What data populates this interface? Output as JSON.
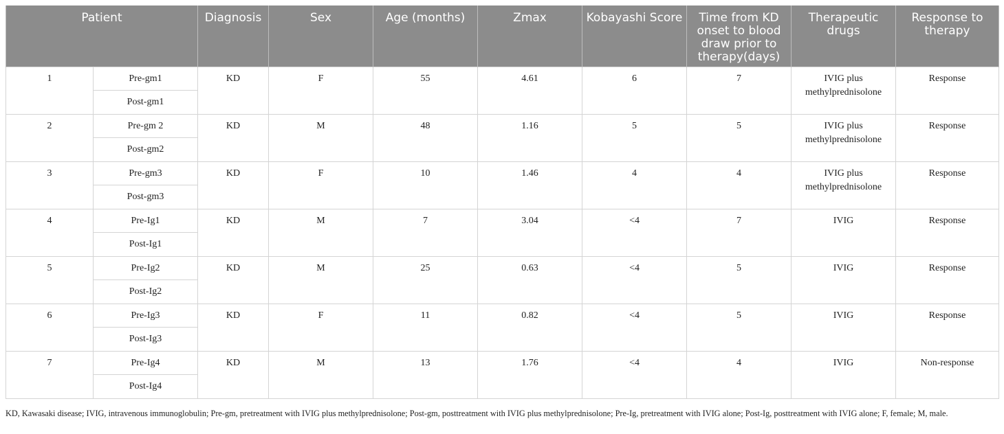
{
  "headers": [
    "Patient",
    "Diagnosis",
    "Sex",
    "Age (months)",
    "Zmax",
    "Kobayashi Score",
    "Time from KD onset to blood draw prior to therapy(days)",
    "Therapeutic drugs",
    "Response to therapy"
  ],
  "rows": [
    {
      "id": "1",
      "pre": "Pre-gm1",
      "post": "Post-gm1",
      "diagnosis": "KD",
      "sex": "F",
      "age": "55",
      "zmax": "4.61",
      "kobayashi": "6",
      "time": "7",
      "drugs": "IVIG plus methylprednisolone",
      "response": "Response"
    },
    {
      "id": "2",
      "pre": "Pre-gm 2",
      "post": "Post-gm2",
      "diagnosis": "KD",
      "sex": "M",
      "age": "48",
      "zmax": "1.16",
      "kobayashi": "5",
      "time": "5",
      "drugs": "IVIG plus methylprednisolone",
      "response": "Response"
    },
    {
      "id": "3",
      "pre": "Pre-gm3",
      "post": "Post-gm3",
      "diagnosis": "KD",
      "sex": "F",
      "age": "10",
      "zmax": "1.46",
      "kobayashi": "4",
      "time": "4",
      "drugs": "IVIG plus methylprednisolone",
      "response": "Response"
    },
    {
      "id": "4",
      "pre": "Pre-Ig1",
      "post": "Post-Ig1",
      "diagnosis": "KD",
      "sex": "M",
      "age": "7",
      "zmax": "3.04",
      "kobayashi": "<4",
      "time": "7",
      "drugs": "IVIG",
      "response": "Response"
    },
    {
      "id": "5",
      "pre": "Pre-Ig2",
      "post": "Post-Ig2",
      "diagnosis": "KD",
      "sex": "M",
      "age": "25",
      "zmax": "0.63",
      "kobayashi": "<4",
      "time": "5",
      "drugs": "IVIG",
      "response": "Response"
    },
    {
      "id": "6",
      "pre": "Pre-Ig3",
      "post": "Post-Ig3",
      "diagnosis": "KD",
      "sex": "F",
      "age": "11",
      "zmax": "0.82",
      "kobayashi": "<4",
      "time": "5",
      "drugs": "IVIG",
      "response": "Response"
    },
    {
      "id": "7",
      "pre": "Pre-Ig4",
      "post": "Post-Ig4",
      "diagnosis": "KD",
      "sex": "M",
      "age": "13",
      "zmax": "1.76",
      "kobayashi": "<4",
      "time": "4",
      "drugs": "IVIG",
      "response": "Non-response"
    }
  ],
  "footnote": "KD, Kawasaki disease; IVIG, intravenous immunoglobulin; Pre-gm, pretreatment with IVIG plus methylprednisolone; Post-gm, posttreatment with IVIG plus methylprednisolone; Pre-Ig, pretreatment with IVIG alone; Post-Ig, posttreatment with IVIG alone; F, female; M, male."
}
